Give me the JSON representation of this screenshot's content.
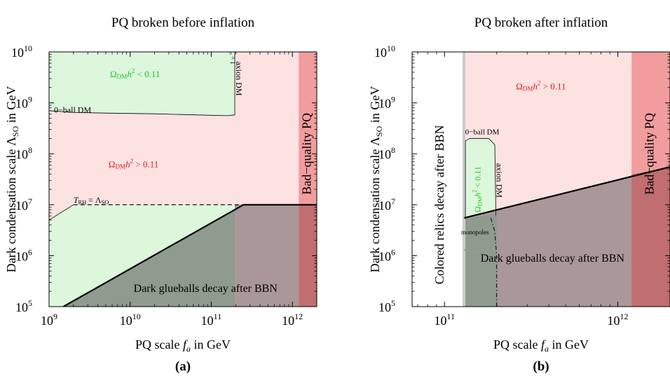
{
  "chart_data": [
    {
      "type": "area",
      "title": "PQ broken before inflation",
      "xlabel": "PQ scale f_a in GeV",
      "ylabel": "Dark condensation scale Λ_SO in GeV",
      "panel_label": "(a)",
      "xscale": "log",
      "yscale": "log",
      "xlim": [
        1000000000.0,
        2000000000000.0
      ],
      "ylim": [
        100000.0,
        10000000000.0
      ],
      "x_ticks": [
        {
          "value": 1000000000.0,
          "base": "10",
          "exp": "9"
        },
        {
          "value": 10000000000.0,
          "base": "10",
          "exp": "10"
        },
        {
          "value": 100000000000.0,
          "base": "10",
          "exp": "11"
        },
        {
          "value": 1000000000000.0,
          "base": "10",
          "exp": "12"
        }
      ],
      "y_ticks": [
        {
          "value": 100000.0,
          "base": "10",
          "exp": "5"
        },
        {
          "value": 1000000.0,
          "base": "10",
          "exp": "6"
        },
        {
          "value": 10000000.0,
          "base": "10",
          "exp": "7"
        },
        {
          "value": 100000000.0,
          "base": "10",
          "exp": "8"
        },
        {
          "value": 1000000000.0,
          "base": "10",
          "exp": "9"
        },
        {
          "value": 10000000000.0,
          "base": "10",
          "exp": "10"
        }
      ],
      "regions": [
        {
          "name": "green-region",
          "color": "#dcf7dc",
          "points": [
            [
              1000000000.0,
              100000.0
            ],
            [
              2000000000000.0,
              100000.0
            ],
            [
              2000000000000.0,
              10000000000.0
            ],
            [
              1000000000.0,
              10000000000.0
            ]
          ]
        },
        {
          "name": "pink-region",
          "color": "#fde2e2",
          "points": [
            [
              1000000000.0,
              700000000.0
            ],
            [
              2000000000.0,
              650000000.0
            ],
            [
              5000000000.0,
              630000000.0
            ],
            [
              20000000000.0,
              610000000.0
            ],
            [
              100000000000.0,
              570000000.0
            ],
            [
              160000000000.0,
              560000000.0
            ],
            [
              195000000000.0,
              580000000.0
            ],
            [
              195000000000.0,
              10000000000.0
            ],
            [
              2000000000000.0,
              10000000000.0
            ],
            [
              2000000000000.0,
              10000000.0
            ],
            [
              2000000000.0,
              10000000.0
            ],
            [
              1000000000.0,
              5000000.0
            ]
          ]
        },
        {
          "name": "glueball-region",
          "color": "#8e9b8e",
          "points": [
            [
              1500000000.0,
              100000.0
            ],
            [
              250000000000.0,
              10000000.0
            ],
            [
              2000000000000.0,
              10000000.0
            ],
            [
              2000000000000.0,
              100000.0
            ]
          ]
        },
        {
          "name": "purple-region",
          "color": "#aa9898",
          "points": [
            [
              195000000000.0,
              100000.0
            ],
            [
              195000000000.0,
              10000000.0
            ],
            [
              2000000000000.0,
              10000000.0
            ],
            [
              2000000000000.0,
              100000.0
            ]
          ]
        },
        {
          "name": "bad-quality-band",
          "color": "#f19d9d",
          "points": [
            [
              1200000000000.0,
              100000.0
            ],
            [
              2000000000000.0,
              100000.0
            ],
            [
              2000000000000.0,
              10000000000.0
            ],
            [
              1200000000000.0,
              10000000000.0
            ]
          ]
        },
        {
          "name": "bad-quality-dark",
          "color": "#c06e70",
          "points": [
            [
              1200000000000.0,
              100000.0
            ],
            [
              2000000000000.0,
              100000.0
            ],
            [
              2000000000000.0,
              10000000.0
            ],
            [
              1200000000000.0,
              10000000.0
            ]
          ]
        }
      ],
      "lines": [
        {
          "name": "glueball-boundary",
          "style": "solid",
          "width": 2.2,
          "points": [
            [
              1500000000.0,
              100000.0
            ],
            [
              250000000000.0,
              10000000.0
            ],
            [
              2000000000000.0,
              10000000.0
            ]
          ]
        },
        {
          "name": "reheating-line",
          "style": "dashed",
          "width": 1.2,
          "points": [
            [
              2000000000.0,
              10000000.0
            ],
            [
              250000000000.0,
              10000000.0
            ]
          ]
        },
        {
          "name": "q-ball-boundary",
          "style": "solid",
          "width": 0.8,
          "points": [
            [
              1000000000.0,
              700000000.0
            ],
            [
              2000000000.0,
              650000000.0
            ],
            [
              5000000000.0,
              630000000.0
            ],
            [
              20000000000.0,
              610000000.0
            ],
            [
              100000000000.0,
              570000000.0
            ],
            [
              160000000000.0,
              560000000.0
            ],
            [
              195000000000.0,
              580000000.0
            ],
            [
              195000000000.0,
              10000000000.0
            ]
          ]
        },
        {
          "name": "reheating-pink-edge",
          "style": "solid",
          "width": 0.8,
          "points": [
            [
              1000000000.0,
              5000000.0
            ],
            [
              2000000000.0,
              10000000.0
            ]
          ]
        }
      ],
      "labels": [
        {
          "name": "label-omega-green",
          "type": "omega",
          "sub": "DM",
          "cmp": "< 0.11",
          "color": "#22c22c",
          "x": 11500000000.0,
          "y": 3500000000.0,
          "size": 13
        },
        {
          "name": "label-theta",
          "type": "theta",
          "text": "θ₀ = 1",
          "color": "#000000",
          "x": 180000000000.0,
          "y": 8000000000.0,
          "size": 9,
          "rotate": 90
        },
        {
          "name": "label-axion-dm",
          "type": "text",
          "text": "axion DM",
          "color": "#000000",
          "x": 215000000000.0,
          "y": 3000000000.0,
          "size": 12,
          "rotate": 90
        },
        {
          "name": "label-q-ball-dm",
          "type": "text",
          "text": "0−ball DM",
          "color": "#000000",
          "x": 1150000000.0,
          "y": 700000000.0,
          "size": 12,
          "anchor": "start"
        },
        {
          "name": "label-omega-red",
          "type": "omega",
          "sub": "DM",
          "cmp": "> 0.11",
          "color": "#e31a1a",
          "x": 11000000000.0,
          "y": 60000000.0,
          "size": 13
        },
        {
          "name": "label-reheating",
          "type": "reheat",
          "color": "#000000",
          "x": 2000000000.0,
          "y": 12000000.0,
          "size": 12,
          "anchor": "start"
        },
        {
          "name": "label-bad-quality",
          "type": "text",
          "text": "Bad−quality PQ",
          "color": "#000000",
          "x": 1550000000000.0,
          "y": 100000000.0,
          "size": 18,
          "rotate": -90
        },
        {
          "name": "label-glueballs",
          "type": "text",
          "text": "Dark glueballs decay after BBN",
          "color": "#000000",
          "x": 85000000000.0,
          "y": 220000.0,
          "size": 16
        }
      ]
    },
    {
      "type": "area",
      "title": "PQ broken after inflation",
      "xlabel": "PQ scale f_a in GeV",
      "ylabel": "Dark condensation scale Λ_SO in GeV",
      "panel_label": "(b)",
      "xscale": "log",
      "yscale": "log",
      "xlim": [
        65000000000.0,
        2000000000000.0
      ],
      "ylim": [
        100000.0,
        10000000000.0
      ],
      "x_ticks": [
        {
          "value": 100000000000.0,
          "base": "10",
          "exp": "11"
        },
        {
          "value": 1000000000000.0,
          "base": "10",
          "exp": "12"
        }
      ],
      "y_ticks": [
        {
          "value": 100000.0,
          "base": "10",
          "exp": "5"
        },
        {
          "value": 1000000.0,
          "base": "10",
          "exp": "6"
        },
        {
          "value": 10000000.0,
          "base": "10",
          "exp": "7"
        },
        {
          "value": 100000000.0,
          "base": "10",
          "exp": "8"
        },
        {
          "value": 1000000000.0,
          "base": "10",
          "exp": "9"
        },
        {
          "value": 10000000000.0,
          "base": "10",
          "exp": "10"
        }
      ],
      "regions": [
        {
          "name": "pink-region",
          "color": "#fde2e2",
          "points": [
            [
              130000000000.0,
              100000.0
            ],
            [
              2000000000000.0,
              100000.0
            ],
            [
              2000000000000.0,
              10000000000.0
            ],
            [
              130000000000.0,
              10000000000.0
            ]
          ]
        },
        {
          "name": "green-region",
          "color": "#dcf7dc",
          "points": [
            [
              132000000000.0,
              5200000.0
            ],
            [
              132000000000.0,
              180000000.0
            ],
            [
              140000000000.0,
              200000000.0
            ],
            [
              180000000000.0,
              200000000.0
            ],
            [
              195000000000.0,
              150000000.0
            ],
            [
              198000000000.0,
              6200000.0
            ]
          ]
        },
        {
          "name": "glueball-region",
          "color": "#aa9898",
          "points": [
            [
              130000000000.0,
              5500000.0
            ],
            [
              2000000000000.0,
              55000000.0
            ],
            [
              2000000000000.0,
              100000.0
            ],
            [
              130000000000.0,
              100000.0
            ]
          ]
        },
        {
          "name": "glueball-green-region",
          "color": "#8e9b8e",
          "points": [
            [
              130000000000.0,
              5500000.0
            ],
            [
              200000000000.0,
              6500000.0
            ],
            [
              200000000000.0,
              100000.0
            ],
            [
              130000000000.0,
              100000.0
            ]
          ]
        },
        {
          "name": "bad-quality-band",
          "color": "#f19d9d",
          "points": [
            [
              1200000000000.0,
              100000.0
            ],
            [
              2000000000000.0,
              100000.0
            ],
            [
              2000000000000.0,
              10000000000.0
            ],
            [
              1200000000000.0,
              10000000000.0
            ]
          ]
        },
        {
          "name": "bad-quality-dark",
          "color": "#c06e70",
          "points": [
            [
              1200000000000.0,
              100000.0
            ],
            [
              2000000000000.0,
              100000.0
            ],
            [
              2000000000000.0,
              55000000.0
            ],
            [
              1200000000000.0,
              39000000.0
            ]
          ]
        },
        {
          "name": "colored-relics-band",
          "color": "#cccccc",
          "points": [
            [
              127000000000.0,
              100000.0
            ],
            [
              132000000000.0,
              100000.0
            ],
            [
              132000000000.0,
              10000000000.0
            ],
            [
              127000000000.0,
              10000000000.0
            ]
          ]
        }
      ],
      "lines": [
        {
          "name": "glueball-boundary",
          "style": "solid",
          "width": 2.2,
          "points": [
            [
              130000000000.0,
              5500000.0
            ],
            [
              2000000000000.0,
              55000000.0
            ]
          ]
        },
        {
          "name": "q-ball-boundary",
          "style": "solid",
          "width": 0.8,
          "points": [
            [
              132000000000.0,
              5200000.0
            ],
            [
              132000000000.0,
              180000000.0
            ],
            [
              140000000000.0,
              200000000.0
            ],
            [
              180000000000.0,
              200000000.0
            ],
            [
              195000000000.0,
              150000000.0
            ],
            [
              198000000000.0,
              6200000.0
            ]
          ]
        },
        {
          "name": "monopole-boundary",
          "style": "dashdot",
          "width": 1.0,
          "points": [
            [
              185000000000.0,
              5500000.0
            ],
            [
              195000000000.0,
              3000000.0
            ],
            [
              200000000000.0,
              1000000.0
            ],
            [
              200000000000.0,
              100000.0
            ]
          ]
        },
        {
          "name": "monopole-gray-curve",
          "style": "dashed-gray",
          "width": 3,
          "points": [
            [
              132000000000.0,
              1300000.0
            ],
            [
              155000000000.0,
              1150000.0
            ],
            [
              180000000000.0,
              800000.0
            ]
          ]
        }
      ],
      "labels": [
        {
          "name": "label-omega-red",
          "type": "omega",
          "sub": "DM",
          "cmp": "> 0.11",
          "color": "#e31a1a",
          "x": 360000000000.0,
          "y": 2000000000.0,
          "size": 13
        },
        {
          "name": "label-q-ball-dm",
          "type": "text",
          "text": "0−ball DM",
          "color": "#000000",
          "x": 165000000000.0,
          "y": 260000000.0,
          "size": 11
        },
        {
          "name": "label-axion-dm",
          "type": "text",
          "text": "axion DM",
          "color": "#000000",
          "x": 205000000000.0,
          "y": 30000000.0,
          "size": 12,
          "rotate": 90
        },
        {
          "name": "label-omega-green",
          "type": "omega",
          "sub": "DM",
          "cmp": "< 0.11",
          "color": "#22c22c",
          "x": 157000000000.0,
          "y": 20000000.0,
          "size": 12,
          "rotate": -90
        },
        {
          "name": "label-monopoles",
          "type": "text",
          "text": "monopoles",
          "color": "#000000",
          "x": 150000000000.0,
          "y": 2800000.0,
          "size": 9
        },
        {
          "name": "label-colored-relics",
          "type": "text",
          "text": "Colored relics decay after BBN",
          "color": "#000000",
          "x": 95000000000.0,
          "y": 10000000.0,
          "size": 18,
          "rotate": -90
        },
        {
          "name": "label-bad-quality",
          "type": "text",
          "text": "Bad−quality PQ",
          "color": "#000000",
          "x": 1550000000000.0,
          "y": 100000000.0,
          "size": 18,
          "rotate": -90
        },
        {
          "name": "label-glueballs",
          "type": "text",
          "text": "Dark glueballs decay after BBN",
          "color": "#000000",
          "x": 420000000000.0,
          "y": 850000.0,
          "size": 16
        }
      ]
    }
  ]
}
